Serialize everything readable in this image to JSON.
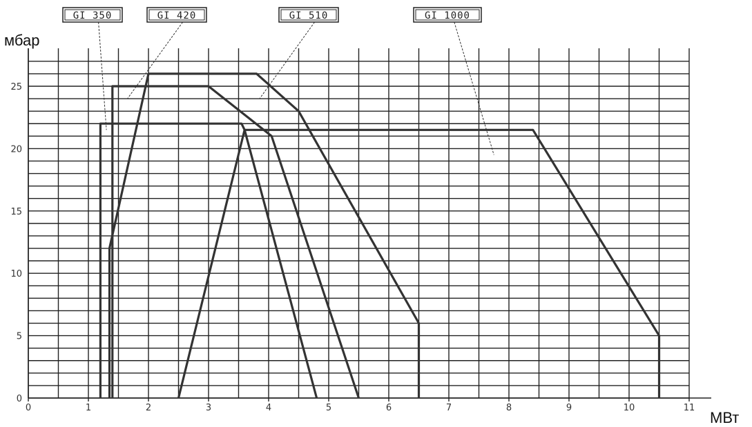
{
  "chart_data": {
    "type": "line",
    "title": "",
    "xlabel": "МВт",
    "ylabel": "мбар",
    "xlim": [
      0,
      11
    ],
    "ylim": [
      0,
      27
    ],
    "x_ticks": [
      0,
      1,
      2,
      3,
      4,
      5,
      6,
      7,
      8,
      9,
      10,
      11
    ],
    "y_ticks": [
      0,
      5,
      10,
      15,
      20,
      25
    ],
    "grid": true,
    "series": [
      {
        "name": "GI 350",
        "points": [
          [
            1.2,
            0
          ],
          [
            1.2,
            22
          ],
          [
            3.55,
            22
          ],
          [
            3.6,
            21.5
          ],
          [
            4.8,
            0
          ]
        ]
      },
      {
        "name": "GI 420",
        "points": [
          [
            1.4,
            0
          ],
          [
            1.4,
            25
          ],
          [
            3.0,
            25
          ],
          [
            4.05,
            21
          ],
          [
            5.5,
            0
          ]
        ]
      },
      {
        "name": "GI 510",
        "points": [
          [
            1.35,
            0
          ],
          [
            1.35,
            12
          ],
          [
            2.0,
            26
          ],
          [
            3.8,
            26
          ],
          [
            4.5,
            23
          ],
          [
            6.5,
            6
          ],
          [
            6.5,
            0
          ]
        ]
      },
      {
        "name": "GI 1000",
        "points": [
          [
            2.5,
            0
          ],
          [
            3.6,
            21.5
          ],
          [
            8.4,
            21.5
          ],
          [
            10.5,
            5
          ],
          [
            10.5,
            0
          ]
        ]
      }
    ],
    "legend": [
      {
        "label": "GI 350",
        "target": [
          1.3,
          21.5
        ]
      },
      {
        "label": "GI 420",
        "target": [
          1.65,
          24
        ]
      },
      {
        "label": "GI 510",
        "target": [
          3.85,
          24
        ]
      },
      {
        "label": "GI 1000",
        "target": [
          7.75,
          19.5
        ]
      }
    ]
  }
}
